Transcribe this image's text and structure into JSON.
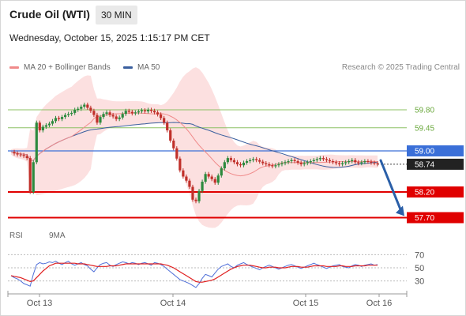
{
  "header": {
    "title": "Crude Oil (WTI)",
    "timeframe": "30 MIN",
    "datetime": "Wednesday, October 15, 2025 1:15:17 PM CET"
  },
  "legend": {
    "ma20_label": "MA 20 + Bollinger Bands",
    "ma50_label": "MA 50",
    "credit": "Research © 2025 Trading Central",
    "ma20_color": "#f08a8a",
    "ma50_color": "#3a5f9e"
  },
  "rsi_legend": {
    "rsi_label": "RSI",
    "ma9_label": "9MA",
    "rsi_color": "#4f6fd8",
    "ma9_color": "#e02020"
  },
  "colors": {
    "up": "#2c8a3e",
    "down": "#c0302a",
    "support": "#e00000",
    "pivot": "#3a6fd8",
    "resistance": "#8cc063",
    "last": "#222222",
    "band": "#fbd5d5"
  },
  "chart_data": [
    {
      "type": "line",
      "title": "Crude Oil (WTI)",
      "timeframe": "30 MIN",
      "x_tick_labels": [
        "Oct 13",
        "Oct 14",
        "Oct 15",
        "Oct 16"
      ],
      "ylim": [
        57.6,
        60.4
      ],
      "series": [
        {
          "name": "Price",
          "x": [
            0,
            1,
            2,
            3,
            4,
            5,
            6,
            7,
            8,
            9,
            10,
            11,
            12,
            13,
            14,
            15,
            16,
            17,
            18,
            19,
            20,
            21,
            22,
            23,
            24,
            25,
            26,
            27,
            28,
            29,
            30,
            31,
            32,
            33,
            34,
            35,
            36,
            37,
            38,
            39,
            40,
            41,
            42,
            43,
            44,
            45,
            46,
            47,
            48,
            49,
            50,
            51,
            52,
            53,
            54,
            55,
            56,
            57,
            58,
            59,
            60,
            61,
            62,
            63,
            64,
            65,
            66,
            67,
            68,
            69,
            70,
            71,
            72,
            73,
            74,
            75,
            76,
            77,
            78,
            79,
            80,
            81,
            82,
            83,
            84,
            85,
            86,
            87,
            88,
            89,
            90,
            91,
            92,
            93,
            94,
            95,
            96,
            97,
            98,
            99,
            100,
            101,
            102,
            103,
            104,
            105,
            106,
            107,
            108,
            109,
            110,
            111,
            112,
            113,
            114,
            115
          ],
          "y": [
            58.98,
            58.95,
            58.93,
            58.92,
            58.9,
            58.86,
            58.2,
            58.78,
            59.55,
            59.4,
            59.47,
            59.5,
            59.53,
            59.58,
            59.64,
            59.62,
            59.66,
            59.7,
            59.72,
            59.74,
            59.8,
            59.82,
            59.86,
            59.9,
            59.84,
            59.78,
            59.7,
            59.55,
            59.66,
            59.72,
            59.75,
            59.7,
            59.67,
            59.62,
            59.65,
            59.72,
            59.78,
            59.76,
            59.73,
            59.75,
            59.77,
            59.79,
            59.77,
            59.8,
            59.78,
            59.75,
            59.71,
            59.64,
            59.55,
            59.4,
            59.2,
            59.05,
            58.85,
            58.62,
            58.5,
            58.42,
            58.3,
            58.05,
            58.02,
            58.22,
            58.4,
            58.55,
            58.5,
            58.45,
            58.38,
            58.52,
            58.66,
            58.78,
            58.86,
            58.82,
            58.78,
            58.74,
            58.72,
            58.77,
            58.8,
            58.82,
            58.84,
            58.82,
            58.79,
            58.76,
            58.74,
            58.72,
            58.7,
            58.72,
            58.74,
            58.76,
            58.78,
            58.8,
            58.82,
            58.8,
            58.77,
            58.74,
            58.76,
            58.78,
            58.8,
            58.82,
            58.84,
            58.86,
            58.84,
            58.82,
            58.8,
            58.78,
            58.76,
            58.74,
            58.76,
            58.78,
            58.8,
            58.82,
            58.78,
            58.76,
            58.78,
            58.8,
            58.79,
            58.77,
            58.76,
            58.74
          ]
        },
        {
          "name": "MA 50"
        },
        {
          "name": "MA 20 + Bollinger Bands"
        }
      ],
      "price_labels": [
        {
          "value": 59.8,
          "label": "59.80",
          "kind": "resistance"
        },
        {
          "value": 59.45,
          "label": "59.45",
          "kind": "resistance"
        },
        {
          "value": 59.0,
          "label": "59.00",
          "kind": "pivot"
        },
        {
          "value": 58.74,
          "label": "58.74",
          "kind": "last"
        },
        {
          "value": 58.2,
          "label": "58.20",
          "kind": "support"
        },
        {
          "value": 57.7,
          "label": "57.70",
          "kind": "support"
        }
      ],
      "arrow": "down"
    },
    {
      "type": "line",
      "title": "RSI",
      "ylim": [
        15,
        85
      ],
      "y_ticks": [
        70,
        50,
        30
      ],
      "series": [
        {
          "name": "RSI",
          "y": [
            38,
            35,
            33,
            30,
            26,
            24,
            22,
            40,
            55,
            58,
            56,
            57,
            59,
            58,
            60,
            57,
            55,
            58,
            60,
            56,
            54,
            56,
            58,
            55,
            53,
            48,
            44,
            50,
            55,
            57,
            58,
            54,
            52,
            55,
            57,
            59,
            58,
            56,
            58,
            57,
            55,
            57,
            58,
            56,
            54,
            58,
            57,
            55,
            52,
            48,
            44,
            40,
            36,
            32,
            30,
            28,
            26,
            23,
            20,
            26,
            34,
            40,
            38,
            36,
            42,
            48,
            52,
            54,
            56,
            52,
            50,
            54,
            56,
            58,
            55,
            53,
            51,
            49,
            47,
            50,
            52,
            54,
            52,
            50,
            48,
            50,
            52,
            54,
            55,
            53,
            51,
            49,
            51,
            53,
            55,
            57,
            55,
            53,
            51,
            49,
            51,
            53,
            54,
            55,
            52,
            51,
            50,
            53,
            55,
            54,
            52,
            54,
            55,
            56,
            54,
            55
          ]
        },
        {
          "name": "9MA",
          "y": [
            38,
            37,
            36,
            35,
            33,
            31,
            29,
            30,
            35,
            40,
            45,
            49,
            53,
            55,
            57,
            57,
            57,
            57,
            57,
            57,
            57,
            56,
            56,
            56,
            55,
            54,
            53,
            52,
            52,
            52,
            52,
            53,
            53,
            53,
            54,
            55,
            56,
            56,
            56,
            56,
            56,
            56,
            56,
            56,
            56,
            56,
            56,
            56,
            55,
            54,
            52,
            50,
            47,
            44,
            41,
            38,
            35,
            32,
            29,
            28,
            28,
            29,
            30,
            31,
            33,
            36,
            39,
            42,
            45,
            48,
            50,
            52,
            53,
            54,
            54,
            54,
            53,
            52,
            51,
            50,
            50,
            51,
            51,
            51,
            50,
            50,
            50,
            51,
            52,
            52,
            52,
            51,
            51,
            51,
            52,
            53,
            53,
            53,
            53,
            52,
            52,
            52,
            52,
            53,
            53,
            52,
            52,
            52,
            53,
            53,
            53,
            53,
            54,
            54,
            54,
            54
          ]
        }
      ]
    }
  ]
}
